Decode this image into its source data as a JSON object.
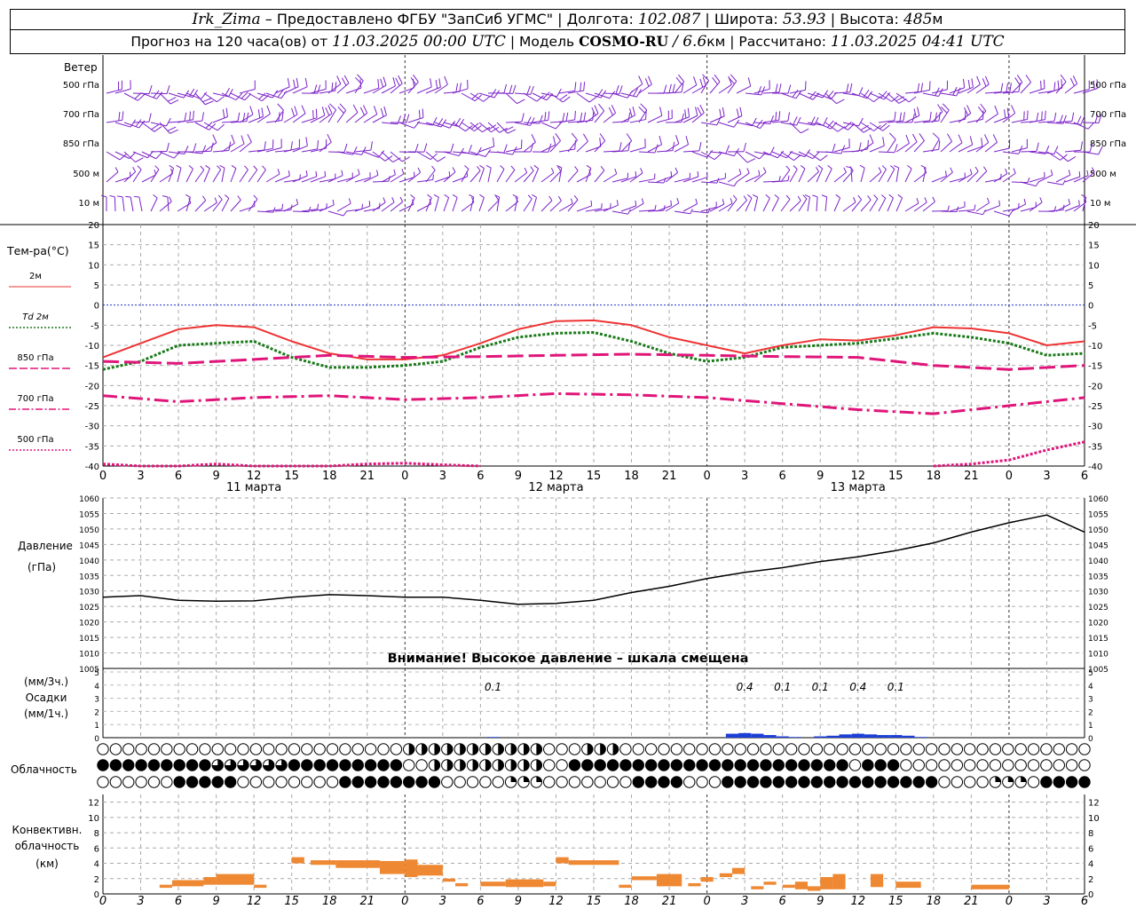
{
  "header": {
    "station": "Irk_Zima",
    "provided_by": "– Предоставлено ФГБУ \"ЗапСиб УГМС\" |",
    "lon_label": "Долгота:",
    "lon_value": "102.087",
    "lat_label": "| Широта:",
    "lat_value": "53.93",
    "alt_label": "| Высота:",
    "alt_value": "485",
    "alt_unit": "м",
    "forecast_label": "Прогноз на 120 часа(ов) от",
    "forecast_start": "11.03.2025 00:00 UTC",
    "model_label": "| Модель",
    "model_name": "COSMO-RU",
    "model_res": "/ 6.6",
    "model_res_unit": "км",
    "calc_label": "| Рассчитано:",
    "calc_time": "11.03.2025 04:41 UTC"
  },
  "panels": {
    "wind": {
      "title": "Ветер",
      "levels": [
        "500 гПа",
        "700 гПа",
        "850 гПа",
        "500 м",
        "10 м"
      ],
      "color": "#7b22c8"
    },
    "temperature": {
      "title": "Тем-ра(°С)",
      "legend": [
        {
          "label": "2м",
          "color": "#ee3333",
          "style": "solid"
        },
        {
          "label": "Td  2м",
          "color": "#1a7a1a",
          "style": "dotted"
        },
        {
          "label": "850 гПа",
          "color": "#e0157a",
          "style": "dashed"
        },
        {
          "label": "700 гПа",
          "color": "#e0157a",
          "style": "dashdot"
        },
        {
          "label": "500 гПа",
          "color": "#e0157a",
          "style": "dotted"
        }
      ]
    },
    "pressure": {
      "title": "Давление",
      "unit": "(гПа)",
      "warning": "Внимание! Высокое давление – шкала смещена"
    },
    "precip": {
      "unit_top": "(мм/3ч.)",
      "title": "Осадки",
      "unit_bottom": "(мм/1ч.)",
      "color": "#1c3fd6"
    },
    "clouds": {
      "title": "Облачность"
    },
    "convective": {
      "title_line1": "Конвективн.",
      "title_line2": "облачность",
      "unit": "(км)",
      "color": "#ee8833"
    }
  },
  "days": [
    "11 марта",
    "12 марта",
    "13 марта"
  ],
  "hour_ticks": [
    "0",
    "3",
    "6",
    "9",
    "12",
    "15",
    "18",
    "21",
    "0",
    "3",
    "6",
    "9",
    "12",
    "15",
    "18",
    "21",
    "0",
    "3",
    "6",
    "9",
    "12",
    "15",
    "18",
    "21",
    "0",
    "3",
    "6"
  ],
  "chart_data": [
    {
      "type": "line",
      "title": "Тем-ра(°С)",
      "x_unit": "hours from 11.03.2025 00:00 UTC",
      "ylim": [
        -40,
        20
      ],
      "yticks": [
        20,
        15,
        10,
        5,
        0,
        -5,
        -10,
        -15,
        -20,
        -25,
        -30,
        -35,
        -40
      ],
      "series": [
        {
          "name": "2м",
          "x": [
            0,
            3,
            6,
            9,
            12,
            15,
            18,
            21,
            24,
            27,
            30,
            33,
            36,
            39,
            42,
            45,
            48,
            51,
            54,
            57,
            60,
            63,
            66,
            69,
            72,
            75,
            78
          ],
          "values": [
            -13,
            -9.5,
            -6,
            -5,
            -5.5,
            -9,
            -12,
            -13.5,
            -13.5,
            -12.5,
            -9.5,
            -6,
            -4,
            -3.8,
            -5,
            -8,
            -10,
            -12,
            -10,
            -8.5,
            -8.8,
            -7.5,
            -5.5,
            -5.8,
            -7,
            -10,
            -9
          ]
        },
        {
          "name": "Td  2м",
          "x": [
            0,
            3,
            6,
            9,
            12,
            15,
            18,
            21,
            24,
            27,
            30,
            33,
            36,
            39,
            42,
            45,
            48,
            51,
            54,
            57,
            60,
            63,
            66,
            69,
            72,
            75,
            78
          ],
          "values": [
            -16,
            -14,
            -10,
            -9.5,
            -9,
            -13,
            -15.5,
            -15.5,
            -15,
            -14,
            -10.5,
            -8,
            -7,
            -6.8,
            -9,
            -12,
            -14,
            -13,
            -10.5,
            -10,
            -9.5,
            -8.3,
            -7,
            -8,
            -9.5,
            -12.5,
            -12
          ]
        },
        {
          "name": "850 гПа",
          "x": [
            0,
            6,
            12,
            18,
            24,
            30,
            36,
            42,
            48,
            54,
            60,
            66,
            72,
            78
          ],
          "values": [
            -14,
            -14.5,
            -13.5,
            -12.5,
            -13,
            -12.8,
            -12.5,
            -12.2,
            -12.5,
            -12.8,
            -13,
            -15,
            -16,
            -15
          ]
        },
        {
          "name": "700 гПа",
          "x": [
            0,
            6,
            12,
            18,
            24,
            30,
            36,
            42,
            48,
            54,
            60,
            66,
            72,
            78
          ],
          "values": [
            -22.5,
            -24,
            -23,
            -22.5,
            -23.5,
            -23,
            -22,
            -22.3,
            -23,
            -24.5,
            -26,
            -27,
            -25,
            -23
          ]
        },
        {
          "name": "500 гПа",
          "x": [
            0,
            3,
            6,
            9,
            12,
            15,
            18,
            21,
            24,
            27,
            30
          ],
          "values": [
            -39.5,
            -40,
            -40,
            -39.5,
            -40,
            -40,
            -40,
            -39.5,
            -39.3,
            -39.7,
            -40
          ]
        }
      ]
    },
    {
      "type": "line",
      "title": "Давление",
      "ylabel": "(гПа)",
      "ylim": [
        1005,
        1060
      ],
      "yticks": [
        1060,
        1055,
        1050,
        1045,
        1040,
        1035,
        1030,
        1025,
        1020,
        1015,
        1010,
        1005
      ],
      "series": [
        {
          "x": [
            0,
            3,
            6,
            9,
            12,
            15,
            18,
            21,
            24,
            27,
            30,
            33,
            36,
            39,
            42,
            45,
            48,
            51,
            54,
            57,
            60,
            63,
            66,
            69,
            72,
            75,
            78
          ],
          "values": [
            1028,
            1028.5,
            1027,
            1026.7,
            1026.8,
            1028,
            1028.8,
            1028.5,
            1028,
            1028,
            1027,
            1025.7,
            1026,
            1027,
            1029.5,
            1031.5,
            1034,
            1036,
            1037.5,
            1039.5,
            1041,
            1043,
            1045.5,
            1049,
            1052,
            1054.5,
            1049
          ]
        }
      ]
    },
    {
      "type": "bar",
      "title": "Осадки",
      "ylabel": "(мм/1ч.)",
      "ylim": [
        0,
        5
      ],
      "yticks": [
        5,
        4,
        3,
        2,
        1,
        0
      ],
      "x": [
        31,
        50,
        51,
        52,
        53,
        54,
        55,
        57,
        58,
        59,
        60,
        61,
        62,
        63,
        64,
        65
      ],
      "values": [
        0.05,
        0.3,
        0.35,
        0.3,
        0.2,
        0.1,
        0.05,
        0.1,
        0.15,
        0.25,
        0.3,
        0.25,
        0.2,
        0.2,
        0.15,
        0.05
      ],
      "labels": [
        {
          "x": 31,
          "text": "0.1"
        },
        {
          "x": 51,
          "text": "0.4"
        },
        {
          "x": 54,
          "text": "0.1"
        },
        {
          "x": 57,
          "text": "0.1"
        },
        {
          "x": 60,
          "text": "0.4"
        },
        {
          "x": 63,
          "text": "0.1"
        }
      ]
    },
    {
      "type": "bar",
      "title": "Конвективн. облачность",
      "ylabel": "(км)",
      "ylim": [
        0,
        13
      ],
      "yticks": [
        12,
        10,
        8,
        6,
        4,
        2,
        0
      ],
      "bars": [
        {
          "x0": 4.5,
          "x1": 5.5,
          "bottom": 0.8,
          "top": 1.2
        },
        {
          "x0": 5.5,
          "x1": 8,
          "bottom": 1.0,
          "top": 1.8
        },
        {
          "x0": 8,
          "x1": 9,
          "bottom": 1.2,
          "top": 2.2
        },
        {
          "x0": 9,
          "x1": 12,
          "bottom": 1.2,
          "top": 2.6
        },
        {
          "x0": 12,
          "x1": 13,
          "bottom": 0.8,
          "top": 1.2
        },
        {
          "x0": 15,
          "x1": 16,
          "bottom": 4.0,
          "top": 4.8
        },
        {
          "x0": 16.5,
          "x1": 18.5,
          "bottom": 3.8,
          "top": 4.4
        },
        {
          "x0": 18.5,
          "x1": 22,
          "bottom": 3.4,
          "top": 4.4
        },
        {
          "x0": 22,
          "x1": 24,
          "bottom": 2.6,
          "top": 4.3
        },
        {
          "x0": 24,
          "x1": 25,
          "bottom": 2.2,
          "top": 4.5
        },
        {
          "x0": 25,
          "x1": 27,
          "bottom": 2.4,
          "top": 3.8
        },
        {
          "x0": 27,
          "x1": 28,
          "bottom": 1.6,
          "top": 2.0
        },
        {
          "x0": 28,
          "x1": 29,
          "bottom": 1.0,
          "top": 1.4
        },
        {
          "x0": 30,
          "x1": 32,
          "bottom": 1.0,
          "top": 1.6
        },
        {
          "x0": 32,
          "x1": 35,
          "bottom": 0.9,
          "top": 1.9
        },
        {
          "x0": 35,
          "x1": 36,
          "bottom": 1.0,
          "top": 1.6
        },
        {
          "x0": 36,
          "x1": 37,
          "bottom": 4.0,
          "top": 4.8
        },
        {
          "x0": 37,
          "x1": 41,
          "bottom": 3.8,
          "top": 4.4
        },
        {
          "x0": 41,
          "x1": 42,
          "bottom": 0.8,
          "top": 1.2
        },
        {
          "x0": 42,
          "x1": 44,
          "bottom": 1.8,
          "top": 2.3
        },
        {
          "x0": 44,
          "x1": 46,
          "bottom": 1.0,
          "top": 2.6
        },
        {
          "x0": 46.5,
          "x1": 47.5,
          "bottom": 1.0,
          "top": 1.4
        },
        {
          "x0": 47.5,
          "x1": 48.5,
          "bottom": 1.6,
          "top": 2.2
        },
        {
          "x0": 49,
          "x1": 50,
          "bottom": 2.2,
          "top": 2.7
        },
        {
          "x0": 50,
          "x1": 51,
          "bottom": 2.6,
          "top": 3.4
        },
        {
          "x0": 51.5,
          "x1": 52.5,
          "bottom": 0.6,
          "top": 1.0
        },
        {
          "x0": 52.5,
          "x1": 53.5,
          "bottom": 1.2,
          "top": 1.6
        },
        {
          "x0": 54,
          "x1": 55,
          "bottom": 0.8,
          "top": 1.2
        },
        {
          "x0": 55,
          "x1": 56,
          "bottom": 0.6,
          "top": 1.6
        },
        {
          "x0": 56,
          "x1": 57,
          "bottom": 0.4,
          "top": 1.0
        },
        {
          "x0": 57,
          "x1": 58,
          "bottom": 0.6,
          "top": 2.2
        },
        {
          "x0": 58,
          "x1": 59,
          "bottom": 0.6,
          "top": 2.6
        },
        {
          "x0": 61,
          "x1": 62,
          "bottom": 0.9,
          "top": 2.6
        },
        {
          "x0": 63,
          "x1": 65,
          "bottom": 0.8,
          "top": 1.6
        },
        {
          "x0": 69,
          "x1": 72,
          "bottom": 0.6,
          "top": 1.2
        }
      ]
    }
  ]
}
